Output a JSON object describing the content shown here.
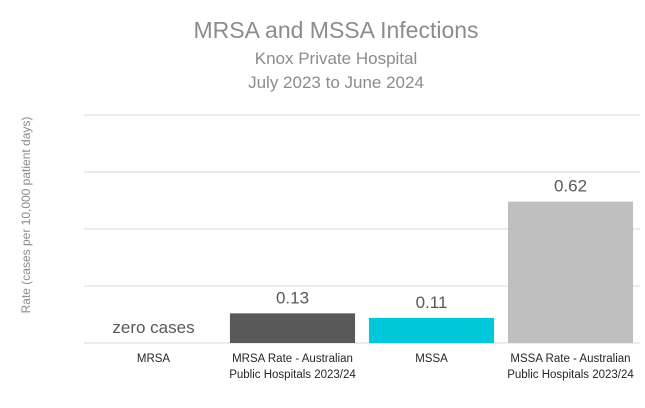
{
  "chart_data": {
    "type": "bar",
    "title": "MRSA and MSSA Infections",
    "subtitle_lines": [
      "Knox Private Hospital",
      "July 2023 to June 2024"
    ],
    "ylabel": "Rate (cases  per 10,000 patient days)",
    "xlabel": "",
    "ylim": [
      0,
      1.0
    ],
    "grid": true,
    "legend": "none",
    "categories": [
      [
        "MRSA"
      ],
      [
        "MRSA Rate - Australian",
        "Public Hospitals 2023/24"
      ],
      [
        "MSSA"
      ],
      [
        "MSSA Rate - Australian",
        "Public Hospitals 2023/24"
      ]
    ],
    "values": [
      0,
      0.13,
      0.11,
      0.62
    ],
    "data_labels": [
      "zero cases",
      "0.13",
      "0.11",
      "0.62"
    ],
    "colors": [
      "#ffffff",
      "#595959",
      "#00c7d9",
      "#bfbfbf"
    ]
  }
}
